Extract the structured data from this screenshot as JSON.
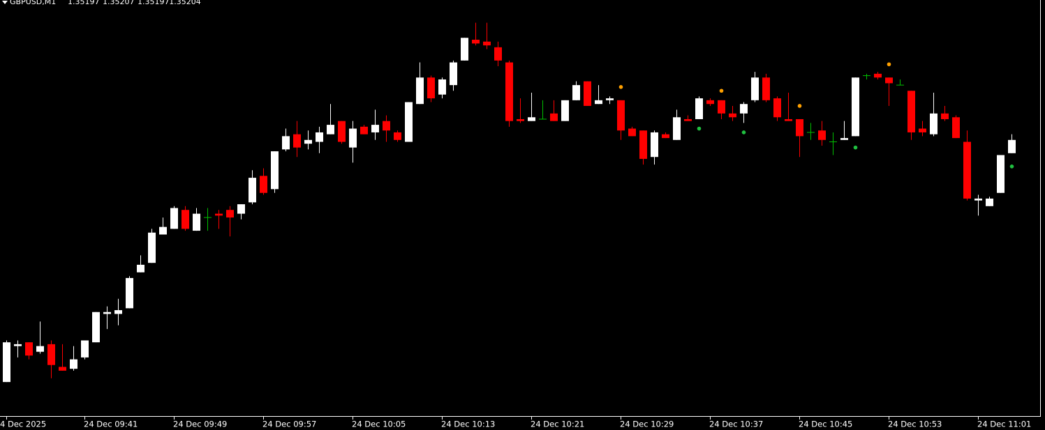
{
  "chart_data": {
    "type": "candlestick",
    "title": "GBPUSD,M1",
    "quote": [
      "1.35197",
      "1.35207",
      "1.35197",
      "1.35204"
    ],
    "categories": [
      "4 Dec 2025",
      null,
      null,
      null,
      null,
      null,
      null,
      "24 Dec 09:41",
      null,
      null,
      null,
      null,
      null,
      null,
      null,
      "24 Dec 09:49",
      null,
      null,
      null,
      null,
      null,
      null,
      null,
      "24 Dec 09:57",
      null,
      null,
      null,
      null,
      null,
      null,
      null,
      "24 Dec 10:05",
      null,
      null,
      null,
      null,
      null,
      null,
      null,
      "24 Dec 10:13",
      null,
      null,
      null,
      null,
      null,
      null,
      null,
      "24 Dec 10:21",
      null,
      null,
      null,
      null,
      null,
      null,
      null,
      "24 Dec 10:29",
      null,
      null,
      null,
      null,
      null,
      null,
      null,
      "24 Dec 10:37",
      null,
      null,
      null,
      null,
      null,
      null,
      null,
      "24 Dec 10:45",
      null,
      null,
      null,
      null,
      null,
      null,
      null,
      "24 Dec 10:53",
      null,
      null,
      null,
      null,
      null,
      null,
      null,
      "24 Dec 11:01",
      null,
      null,
      null
    ],
    "open": [
      1.35076,
      1.35095,
      1.35097,
      1.35092,
      1.35096,
      1.35084,
      1.35083,
      1.35089,
      1.35097,
      1.35112,
      1.35112,
      1.35115,
      1.35134,
      1.35139,
      1.35154,
      1.35157,
      1.35167,
      1.35156,
      1.35163,
      1.35165,
      1.35167,
      1.35165,
      1.35171,
      1.35185,
      1.35178,
      1.35199,
      1.35207,
      1.35202,
      1.35203,
      1.35207,
      1.35214,
      1.352,
      1.35211,
      1.35208,
      1.35214,
      1.35208,
      1.35203,
      1.35223,
      1.35237,
      1.35228,
      1.35233,
      1.35246,
      1.35257,
      1.35256,
      1.35253,
      1.35245,
      1.35215,
      1.35214,
      1.35215,
      1.35218,
      1.35214,
      1.35225,
      1.35235,
      1.35223,
      1.35225,
      1.35225,
      1.3521,
      1.35209,
      1.35195,
      1.35207,
      1.35204,
      1.35215,
      1.35215,
      1.35225,
      1.35225,
      1.35218,
      1.35218,
      1.35225,
      1.35237,
      1.35226,
      1.35215,
      1.35215,
      1.35208,
      1.35209,
      1.35203,
      1.35204,
      1.35206,
      1.35238,
      1.35239,
      1.35237,
      1.35233,
      1.3523,
      1.3521,
      1.35207,
      1.35218,
      1.35216,
      1.35203,
      1.35172,
      1.35169,
      1.35176,
      1.35197
    ],
    "high": [
      1.35098,
      1.35098,
      1.35097,
      1.35108,
      1.35098,
      1.35096,
      1.35095,
      1.35098,
      1.35113,
      1.35116,
      1.3512,
      1.35132,
      1.35143,
      1.35157,
      1.35163,
      1.35169,
      1.35169,
      1.35168,
      1.35168,
      1.35167,
      1.35169,
      1.3517,
      1.35188,
      1.35189,
      1.35198,
      1.3521,
      1.35214,
      1.35209,
      1.35211,
      1.35223,
      1.35214,
      1.35214,
      1.35212,
      1.3522,
      1.35217,
      1.35209,
      1.35224,
      1.35245,
      1.35238,
      1.35237,
      1.35246,
      1.35258,
      1.35266,
      1.35266,
      1.35256,
      1.35246,
      1.35226,
      1.35229,
      1.35225,
      1.35225,
      1.35225,
      1.35235,
      1.35235,
      1.35233,
      1.35227,
      1.35225,
      1.35211,
      1.35209,
      1.35209,
      1.35208,
      1.3522,
      1.35217,
      1.35227,
      1.35226,
      1.35225,
      1.35222,
      1.35224,
      1.3524,
      1.35239,
      1.35227,
      1.35229,
      1.35215,
      1.35213,
      1.35214,
      1.35208,
      1.35214,
      1.35237,
      1.35239,
      1.3524,
      1.35237,
      1.35236,
      1.3523,
      1.35214,
      1.35229,
      1.35222,
      1.35217,
      1.35209,
      1.35175,
      1.35174,
      1.35196,
      1.35207
    ],
    "low": [
      1.35076,
      1.35089,
      1.35088,
      1.35091,
      1.35078,
      1.35082,
      1.35082,
      1.35088,
      1.35097,
      1.35104,
      1.35106,
      1.35115,
      1.35134,
      1.35139,
      1.35154,
      1.35157,
      1.35156,
      1.35156,
      1.35156,
      1.35157,
      1.35153,
      1.35162,
      1.3517,
      1.35175,
      1.35176,
      1.35198,
      1.35195,
      1.35199,
      1.35197,
      1.35207,
      1.35202,
      1.35192,
      1.35207,
      1.35204,
      1.35203,
      1.35203,
      1.35203,
      1.35223,
      1.35224,
      1.35226,
      1.3523,
      1.35246,
      1.35254,
      1.35252,
      1.35243,
      1.35211,
      1.35213,
      1.35214,
      1.35215,
      1.35214,
      1.35214,
      1.35225,
      1.35222,
      1.35223,
      1.35223,
      1.35204,
      1.35206,
      1.35191,
      1.35191,
      1.35205,
      1.35204,
      1.35214,
      1.35215,
      1.35222,
      1.35215,
      1.35214,
      1.35213,
      1.35224,
      1.35224,
      1.35214,
      1.35214,
      1.35195,
      1.35204,
      1.35201,
      1.35196,
      1.35204,
      1.35206,
      1.35236,
      1.35236,
      1.35222,
      1.35233,
      1.35204,
      1.35206,
      1.35206,
      1.35214,
      1.35205,
      1.35172,
      1.35164,
      1.35169,
      1.35176,
      1.35197
    ],
    "close": [
      1.35097,
      1.35096,
      1.3509,
      1.35095,
      1.35085,
      1.35082,
      1.35088,
      1.35098,
      1.35113,
      1.35113,
      1.35114,
      1.35131,
      1.35138,
      1.35155,
      1.35158,
      1.35168,
      1.35157,
      1.35165,
      1.35163,
      1.35164,
      1.35163,
      1.3517,
      1.35184,
      1.35176,
      1.35198,
      1.35206,
      1.352,
      1.35204,
      1.35208,
      1.35212,
      1.35203,
      1.3521,
      1.35207,
      1.35212,
      1.35209,
      1.35204,
      1.35224,
      1.35237,
      1.35226,
      1.35236,
      1.35245,
      1.35258,
      1.35255,
      1.35254,
      1.35246,
      1.35214,
      1.35214,
      1.35216,
      1.35215,
      1.35214,
      1.35225,
      1.35233,
      1.35222,
      1.35225,
      1.35226,
      1.35209,
      1.35206,
      1.35194,
      1.35208,
      1.35205,
      1.35216,
      1.35214,
      1.35226,
      1.35223,
      1.35218,
      1.35216,
      1.35223,
      1.35237,
      1.35225,
      1.35216,
      1.35214,
      1.35206,
      1.35208,
      1.35204,
      1.35203,
      1.35205,
      1.35237,
      1.35238,
      1.35237,
      1.35234,
      1.35233,
      1.35208,
      1.35208,
      1.35218,
      1.35215,
      1.35205,
      1.35173,
      1.35173,
      1.35173,
      1.35196,
      1.35204
    ],
    "up_color": "#ffffff",
    "down_color": "#ff0000",
    "doji_color": "#00c000",
    "markers": {
      "x": [
        55,
        64,
        71,
        79,
        62,
        66,
        76,
        90
      ],
      "values": [
        1.35232,
        1.3523,
        1.35222,
        1.35244,
        1.3521,
        1.35208,
        1.352,
        1.3519
      ],
      "colors": [
        "#ffa000",
        "#ffa000",
        "#ffa000",
        "#ffa000",
        "#20c040",
        "#20c040",
        "#20c040",
        "#20c040"
      ]
    },
    "ylim": [
      1.35058,
      1.35278
    ]
  }
}
